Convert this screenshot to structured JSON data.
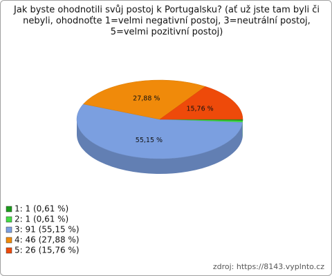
{
  "chart_data": {
    "type": "pie",
    "title": "Jak byste ohodnotili svůj postoj k Portugalsku? (ať už jste tam byli či nebyli, ohodnoťte 1=velmi negativní postoj, 3=neutrální postoj, 5=velmi pozitivní postoj)",
    "categories": [
      "1: 1 (0,61 %)",
      "2: 1 (0,61 %)",
      "3: 91 (55,15 %)",
      "4: 46 (27,88 %)",
      "5: 26 (15,76 %)"
    ],
    "values": [
      0.61,
      0.61,
      55.15,
      27.88,
      15.76
    ],
    "value_labels": [
      null,
      null,
      "55,15 %",
      "27,88 %",
      "15,76 %"
    ],
    "colors": [
      "#1c9c1c",
      "#44dd44",
      "#7b9fe0",
      "#f08a0a",
      "#ee4a0a"
    ],
    "source": "zdroj: https://8143.vyplnto.cz"
  }
}
